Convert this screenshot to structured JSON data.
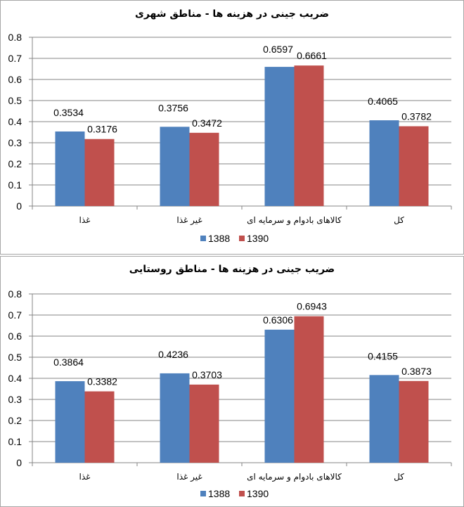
{
  "chart_data": [
    {
      "type": "bar",
      "title": "ضریب جینی در هزینه ها - مناطق شهری",
      "categories": [
        "غذا",
        "غیر غذا",
        "کالاهای بادوام و سرمایه ای",
        "کل"
      ],
      "series": [
        {
          "name": "1388",
          "values": [
            0.3534,
            0.3756,
            0.6597,
            0.4065
          ],
          "color": "#4f81bd"
        },
        {
          "name": "1390",
          "values": [
            0.3176,
            0.3472,
            0.6661,
            0.3782
          ],
          "color": "#c0504d"
        }
      ],
      "ylim": [
        0,
        0.8
      ],
      "yticks": [
        "0",
        "0.1",
        "0.2",
        "0.3",
        "0.4",
        "0.5",
        "0.6",
        "0.7",
        "0.8"
      ],
      "grid": true,
      "legend_position": "bottom"
    },
    {
      "type": "bar",
      "title": "ضریب جینی در هزینه ها - مناطق روستایی",
      "categories": [
        "غذا",
        "غیر غذا",
        "کالاهای بادوام و سرمایه ای",
        "کل"
      ],
      "series": [
        {
          "name": "1388",
          "values": [
            0.3864,
            0.4236,
            0.6306,
            0.4155
          ],
          "color": "#4f81bd"
        },
        {
          "name": "1390",
          "values": [
            0.3382,
            0.3703,
            0.6943,
            0.3873
          ],
          "color": "#c0504d"
        }
      ],
      "ylim": [
        0,
        0.8
      ],
      "yticks": [
        "0",
        "0.1",
        "0.2",
        "0.3",
        "0.4",
        "0.5",
        "0.6",
        "0.7",
        "0.8"
      ],
      "grid": true,
      "legend_position": "bottom"
    }
  ]
}
